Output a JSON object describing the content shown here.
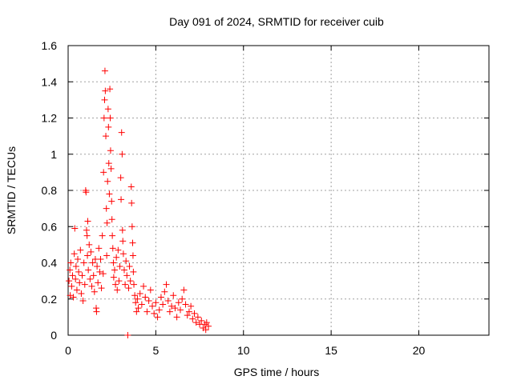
{
  "chart_data": {
    "type": "scatter",
    "title": "Day 091 of 2024, SRMTID for receiver cuib",
    "xlabel": "GPS time / hours",
    "ylabel": "SRMTID / TECUs",
    "xlim": [
      0,
      24
    ],
    "ylim": [
      0,
      1.6
    ],
    "x_ticks": [
      0,
      5,
      10,
      15,
      20
    ],
    "x_tick_labels": [
      "0",
      "5",
      "10",
      "15",
      "20"
    ],
    "y_ticks": [
      0,
      0.2,
      0.4,
      0.6,
      0.8,
      1,
      1.2,
      1.4,
      1.6
    ],
    "y_tick_labels": [
      "0",
      "0.2",
      "0.4",
      "0.6",
      "0.8",
      "1",
      "1.2",
      "1.4",
      "1.6"
    ],
    "grid": true,
    "marker": "plus",
    "series": [
      {
        "name": "SRMTID",
        "color": "#ff0000",
        "points": [
          [
            0.05,
            0.3
          ],
          [
            0.1,
            0.36
          ],
          [
            0.12,
            0.22
          ],
          [
            0.15,
            0.4
          ],
          [
            0.2,
            0.27
          ],
          [
            0.25,
            0.33
          ],
          [
            0.3,
            0.21
          ],
          [
            0.35,
            0.45
          ],
          [
            0.38,
            0.59
          ],
          [
            0.42,
            0.31
          ],
          [
            0.45,
            0.38
          ],
          [
            0.5,
            0.25
          ],
          [
            0.55,
            0.42
          ],
          [
            0.6,
            0.35
          ],
          [
            0.65,
            0.29
          ],
          [
            0.7,
            0.47
          ],
          [
            0.75,
            0.23
          ],
          [
            0.8,
            0.33
          ],
          [
            0.85,
            0.19
          ],
          [
            0.9,
            0.4
          ],
          [
            0.95,
            0.28
          ],
          [
            1.0,
            0.8
          ],
          [
            1.02,
            0.79
          ],
          [
            1.05,
            0.58
          ],
          [
            1.08,
            0.55
          ],
          [
            1.1,
            0.44
          ],
          [
            1.12,
            0.63
          ],
          [
            1.15,
            0.36
          ],
          [
            1.2,
            0.5
          ],
          [
            1.25,
            0.31
          ],
          [
            1.3,
            0.46
          ],
          [
            1.35,
            0.27
          ],
          [
            1.4,
            0.4
          ],
          [
            1.45,
            0.33
          ],
          [
            1.5,
            0.24
          ],
          [
            1.55,
            0.42
          ],
          [
            1.6,
            0.15
          ],
          [
            1.62,
            0.13
          ],
          [
            1.65,
            0.38
          ],
          [
            1.7,
            0.29
          ],
          [
            1.75,
            0.48
          ],
          [
            1.8,
            0.35
          ],
          [
            1.85,
            0.42
          ],
          [
            1.9,
            0.26
          ],
          [
            1.95,
            0.55
          ],
          [
            2.0,
            0.34
          ],
          [
            2.02,
            0.9
          ],
          [
            2.05,
            1.2
          ],
          [
            2.08,
            1.3
          ],
          [
            2.1,
            1.46
          ],
          [
            2.12,
            1.35
          ],
          [
            2.15,
            1.1
          ],
          [
            2.18,
            0.7
          ],
          [
            2.2,
            0.44
          ],
          [
            2.22,
            0.62
          ],
          [
            2.25,
            0.85
          ],
          [
            2.28,
            1.25
          ],
          [
            2.3,
            1.15
          ],
          [
            2.32,
            0.95
          ],
          [
            2.35,
            0.78
          ],
          [
            2.38,
            1.36
          ],
          [
            2.4,
            1.2
          ],
          [
            2.42,
            1.02
          ],
          [
            2.45,
            0.92
          ],
          [
            2.48,
            0.74
          ],
          [
            2.5,
            0.64
          ],
          [
            2.52,
            0.55
          ],
          [
            2.55,
            0.48
          ],
          [
            2.58,
            0.4
          ],
          [
            2.6,
            0.32
          ],
          [
            2.65,
            0.36
          ],
          [
            2.7,
            0.28
          ],
          [
            2.75,
            0.43
          ],
          [
            2.8,
            0.25
          ],
          [
            2.85,
            0.47
          ],
          [
            2.9,
            0.3
          ],
          [
            2.95,
            0.38
          ],
          [
            3.0,
            0.87
          ],
          [
            3.02,
            0.75
          ],
          [
            3.05,
            1.12
          ],
          [
            3.08,
            1.0
          ],
          [
            3.1,
            0.58
          ],
          [
            3.12,
            0.52
          ],
          [
            3.15,
            0.45
          ],
          [
            3.2,
            0.36
          ],
          [
            3.25,
            0.28
          ],
          [
            3.3,
            0.41
          ],
          [
            3.35,
            0.33
          ],
          [
            3.4,
            0.0
          ],
          [
            3.45,
            0.26
          ],
          [
            3.5,
            0.38
          ],
          [
            3.55,
            0.3
          ],
          [
            3.6,
            0.82
          ],
          [
            3.62,
            0.73
          ],
          [
            3.65,
            0.6
          ],
          [
            3.68,
            0.51
          ],
          [
            3.7,
            0.44
          ],
          [
            3.72,
            0.35
          ],
          [
            3.75,
            0.28
          ],
          [
            3.8,
            0.22
          ],
          [
            3.85,
            0.18
          ],
          [
            3.9,
            0.13
          ],
          [
            3.95,
            0.2
          ],
          [
            4.0,
            0.15
          ],
          [
            4.1,
            0.23
          ],
          [
            4.2,
            0.17
          ],
          [
            4.3,
            0.27
          ],
          [
            4.4,
            0.21
          ],
          [
            4.5,
            0.13
          ],
          [
            4.6,
            0.19
          ],
          [
            4.7,
            0.25
          ],
          [
            4.8,
            0.16
          ],
          [
            4.9,
            0.12
          ],
          [
            5.0,
            0.18
          ],
          [
            5.1,
            0.1
          ],
          [
            5.2,
            0.14
          ],
          [
            5.3,
            0.21
          ],
          [
            5.4,
            0.17
          ],
          [
            5.5,
            0.24
          ],
          [
            5.6,
            0.28
          ],
          [
            5.7,
            0.19
          ],
          [
            5.8,
            0.13
          ],
          [
            5.9,
            0.16
          ],
          [
            6.0,
            0.22
          ],
          [
            6.1,
            0.15
          ],
          [
            6.2,
            0.1
          ],
          [
            6.3,
            0.18
          ],
          [
            6.4,
            0.14
          ],
          [
            6.5,
            0.2
          ],
          [
            6.6,
            0.25
          ],
          [
            6.7,
            0.17
          ],
          [
            6.8,
            0.11
          ],
          [
            6.9,
            0.13
          ],
          [
            7.0,
            0.16
          ],
          [
            7.1,
            0.09
          ],
          [
            7.2,
            0.12
          ],
          [
            7.3,
            0.07
          ],
          [
            7.4,
            0.1
          ],
          [
            7.5,
            0.06
          ],
          [
            7.6,
            0.08
          ],
          [
            7.7,
            0.04
          ],
          [
            7.8,
            0.06
          ],
          [
            7.85,
            0.03
          ],
          [
            7.9,
            0.07
          ],
          [
            8.0,
            0.05
          ]
        ]
      }
    ]
  }
}
